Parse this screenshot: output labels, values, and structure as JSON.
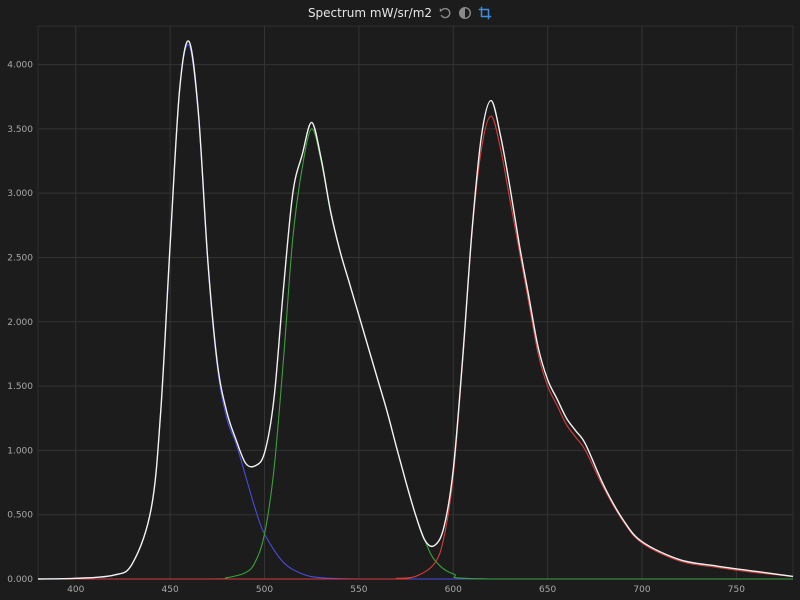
{
  "header": {
    "title": "Spectrum mW/sr/m2",
    "icons": [
      "undo-icon",
      "contrast-icon",
      "crop-icon"
    ]
  },
  "colors": {
    "background": "#1c1c1c",
    "grid": "#333333",
    "total": "#f2f2f2",
    "blue": "#4a4ae0",
    "green": "#3aa23a",
    "red": "#d83c3c",
    "accent": "#3c8ee0"
  },
  "chart_data": {
    "type": "line",
    "title": "Spectrum mW/sr/m2",
    "xlabel": "",
    "ylabel": "",
    "xlim": [
      380,
      780
    ],
    "ylim": [
      0,
      4.3
    ],
    "xticks": [
      {
        "v": 400,
        "label": "400"
      },
      {
        "v": 450,
        "label": "450"
      },
      {
        "v": 500,
        "label": "500"
      },
      {
        "v": 550,
        "label": "550"
      },
      {
        "v": 600,
        "label": "600"
      },
      {
        "v": 650,
        "label": "650"
      },
      {
        "v": 700,
        "label": "700"
      },
      {
        "v": 750,
        "label": "750"
      }
    ],
    "yticks": [
      {
        "v": 0,
        "label": "0.000"
      },
      {
        "v": 0.5,
        "label": "0.500"
      },
      {
        "v": 1.0,
        "label": "1.000"
      },
      {
        "v": 1.5,
        "label": "1.500"
      },
      {
        "v": 2.0,
        "label": "2.000"
      },
      {
        "v": 2.5,
        "label": "2.500"
      },
      {
        "v": 3.0,
        "label": "3.000"
      },
      {
        "v": 3.5,
        "label": "3.500"
      },
      {
        "v": 4.0,
        "label": "4.000"
      }
    ],
    "grid": true,
    "series": [
      {
        "key": "blue",
        "x": [
          380,
          400,
          420,
          430,
          440,
          445,
          450,
          455,
          460,
          465,
          470,
          475,
          480,
          485,
          490,
          495,
          500,
          510,
          520,
          530,
          550,
          600,
          700,
          780
        ],
        "y": [
          0,
          0.005,
          0.03,
          0.12,
          0.55,
          1.3,
          2.6,
          3.8,
          4.15,
          3.6,
          2.45,
          1.65,
          1.25,
          1.05,
          0.8,
          0.55,
          0.35,
          0.13,
          0.04,
          0.01,
          0,
          0,
          0,
          0
        ]
      },
      {
        "key": "green",
        "x": [
          380,
          470,
          480,
          490,
          495,
          500,
          505,
          510,
          515,
          520,
          525,
          530,
          535,
          540,
          545,
          550,
          555,
          560,
          565,
          570,
          575,
          580,
          585,
          590,
          600,
          620,
          780
        ],
        "y": [
          0,
          0,
          0.01,
          0.05,
          0.13,
          0.35,
          0.85,
          1.7,
          2.65,
          3.2,
          3.5,
          3.25,
          2.85,
          2.55,
          2.3,
          2.05,
          1.8,
          1.55,
          1.3,
          1.02,
          0.75,
          0.5,
          0.3,
          0.15,
          0.04,
          0,
          0
        ]
      },
      {
        "key": "red",
        "x": [
          380,
          560,
          570,
          580,
          590,
          595,
          600,
          605,
          610,
          615,
          620,
          625,
          630,
          635,
          640,
          645,
          650,
          655,
          660,
          665,
          670,
          680,
          690,
          700,
          720,
          740,
          760,
          780
        ],
        "y": [
          0,
          0,
          0.005,
          0.02,
          0.12,
          0.32,
          0.8,
          1.7,
          2.7,
          3.35,
          3.6,
          3.35,
          2.95,
          2.55,
          2.15,
          1.75,
          1.5,
          1.35,
          1.2,
          1.1,
          1.0,
          0.7,
          0.45,
          0.28,
          0.14,
          0.09,
          0.05,
          0.02
        ]
      },
      {
        "key": "total",
        "x": [
          380,
          400,
          420,
          430,
          440,
          445,
          450,
          455,
          460,
          465,
          470,
          475,
          480,
          485,
          490,
          495,
          500,
          505,
          510,
          515,
          520,
          525,
          530,
          535,
          540,
          545,
          550,
          555,
          560,
          565,
          570,
          575,
          580,
          585,
          590,
          595,
          600,
          605,
          610,
          615,
          620,
          625,
          630,
          635,
          640,
          645,
          650,
          655,
          660,
          665,
          670,
          680,
          690,
          700,
          720,
          740,
          760,
          780
        ],
        "y": [
          0,
          0.005,
          0.03,
          0.12,
          0.55,
          1.3,
          2.6,
          3.8,
          4.18,
          3.62,
          2.47,
          1.68,
          1.3,
          1.08,
          0.9,
          0.88,
          0.98,
          1.4,
          2.25,
          3.0,
          3.3,
          3.55,
          3.27,
          2.86,
          2.55,
          2.3,
          2.05,
          1.8,
          1.55,
          1.3,
          1.02,
          0.75,
          0.5,
          0.3,
          0.26,
          0.4,
          0.85,
          1.72,
          2.72,
          3.45,
          3.72,
          3.45,
          3.05,
          2.6,
          2.2,
          1.8,
          1.55,
          1.4,
          1.25,
          1.15,
          1.05,
          0.72,
          0.46,
          0.29,
          0.15,
          0.1,
          0.06,
          0.02
        ]
      }
    ]
  }
}
